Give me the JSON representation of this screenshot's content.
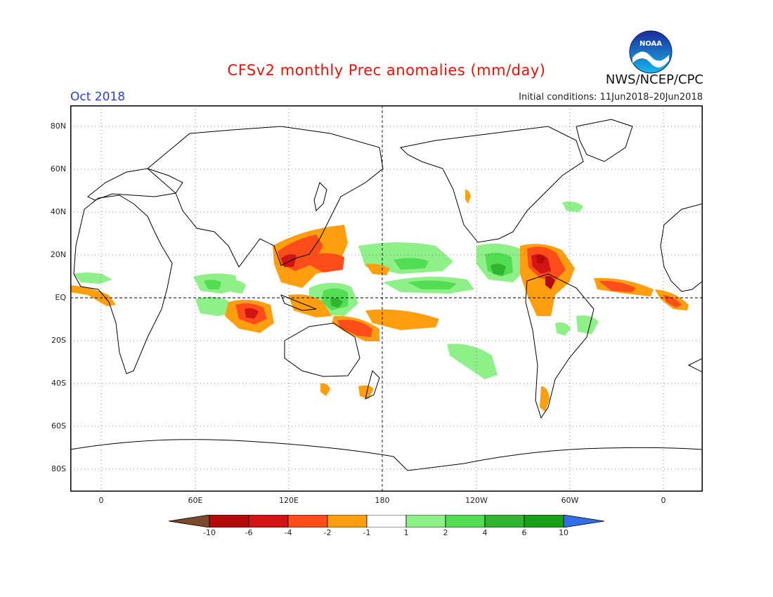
{
  "header": {
    "title": "CFSv2 monthly Prec anomalies (mm/day)",
    "agency": "NWS/NCEP/CPC",
    "logo_text": "NOAA",
    "month": "Oct 2018",
    "initial_conditions": "Initial conditions: 11Jun2018–20Jun2018"
  },
  "map": {
    "projection": "equirectangular",
    "lat_labels": [
      "80N",
      "60N",
      "40N",
      "20N",
      "EQ",
      "20S",
      "40S",
      "60S",
      "80S"
    ],
    "lon_labels": [
      "0",
      "60E",
      "120E",
      "180",
      "120W",
      "60W",
      "0"
    ],
    "dateline_marked": true,
    "equator_marked": true,
    "grid": "dotted"
  },
  "colorbar": {
    "labels": [
      "-10",
      "-6",
      "-4",
      "-2",
      "-1",
      "1",
      "2",
      "4",
      "6",
      "10"
    ],
    "colors": [
      "#7a4a2a",
      "#b40a0a",
      "#d21414",
      "#ff4d1a",
      "#ff9f0f",
      "#ffffff",
      "#8ff08a",
      "#52dd52",
      "#2fb52f",
      "#18a018",
      "#2f6fe8"
    ]
  }
}
